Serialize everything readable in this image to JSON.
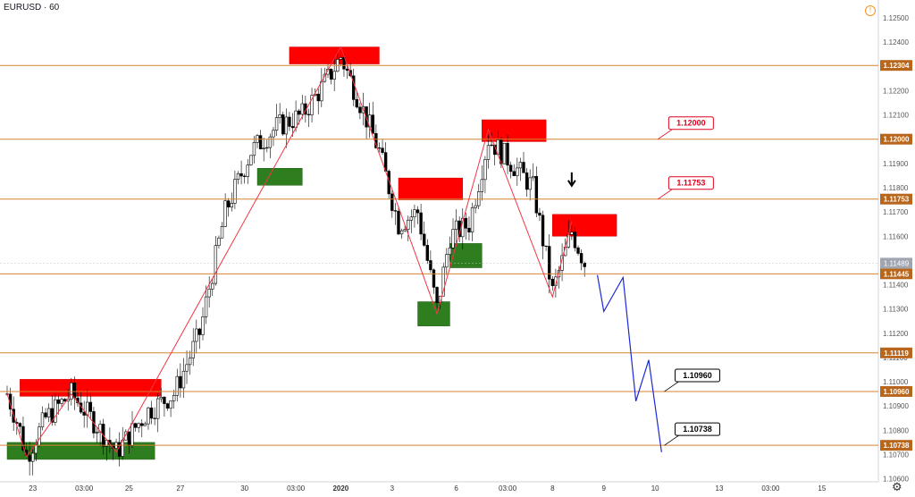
{
  "header": {
    "symbol": "EURUSD · 60",
    "info_icon": "info-icon"
  },
  "settings_icon": "gear-icon",
  "chart_data": {
    "type": "candlestick-annotated",
    "title": "EURUSD · 60",
    "ylim": [
      1.1066,
      1.1254
    ],
    "y_ticks": [
      "1.12500",
      "1.12400",
      "1.12300",
      "1.12200",
      "1.12100",
      "1.12000",
      "1.11900",
      "1.11800",
      "1.11700",
      "1.11600",
      "1.11500",
      "1.11400",
      "1.11300",
      "1.11200",
      "1.11100",
      "1.11000",
      "1.10900",
      "1.10800",
      "1.10700",
      "1.10600"
    ],
    "x_ticks": [
      {
        "label": "23",
        "i": 4
      },
      {
        "label": "03:00",
        "i": 12
      },
      {
        "label": "25",
        "i": 19
      },
      {
        "label": "27",
        "i": 27
      },
      {
        "label": "30",
        "i": 37
      },
      {
        "label": "03:00",
        "i": 45
      },
      {
        "label": "2020",
        "i": 52,
        "bold": true
      },
      {
        "label": "3",
        "i": 60
      },
      {
        "label": "6",
        "i": 70
      },
      {
        "label": "03:00",
        "i": 78
      },
      {
        "label": "8",
        "i": 85
      },
      {
        "label": "9",
        "i": 93
      },
      {
        "label": "10",
        "i": 101
      },
      {
        "label": "13",
        "i": 111
      },
      {
        "label": "03:00",
        "i": 119
      },
      {
        "label": "15",
        "i": 127
      }
    ],
    "current_price": "1.11489",
    "levels": [
      {
        "label": "1.12304",
        "value": 1.12304
      },
      {
        "label": "1.12000",
        "value": 1.12
      },
      {
        "label": "1.11753",
        "value": 1.11753
      },
      {
        "label": "1.11445",
        "value": 1.11445
      },
      {
        "label": "1.11119",
        "value": 1.11119
      },
      {
        "label": "1.10960",
        "value": 1.1096
      },
      {
        "label": "1.10738",
        "value": 1.10738
      }
    ],
    "callouts": [
      {
        "label": "1.12000",
        "color": "#e0001b",
        "i": 102,
        "value": 1.12
      },
      {
        "label": "1.11753",
        "color": "#e0001b",
        "i": 102,
        "value": 1.11753
      },
      {
        "label": "1.10960",
        "color": "#000000",
        "i": 103,
        "value": 1.1096
      },
      {
        "label": "1.10738",
        "color": "#000000",
        "i": 103,
        "value": 1.10738
      }
    ],
    "zones": [
      {
        "color": "red",
        "i0": 2,
        "i1": 24,
        "y0": 1.1101,
        "y1": 1.1094
      },
      {
        "color": "green",
        "i0": 0,
        "i1": 23,
        "y0": 1.1075,
        "y1": 1.1068
      },
      {
        "color": "green",
        "i0": 39,
        "i1": 46,
        "y0": 1.1188,
        "y1": 1.1181
      },
      {
        "color": "red",
        "i0": 44,
        "i1": 58,
        "y0": 1.1238,
        "y1": 1.1231
      },
      {
        "color": "red",
        "i0": 61,
        "i1": 71,
        "y0": 1.1184,
        "y1": 1.1175
      },
      {
        "color": "green",
        "i0": 64,
        "i1": 69,
        "y0": 1.1133,
        "y1": 1.1123
      },
      {
        "color": "green",
        "i0": 69,
        "i1": 74,
        "y0": 1.1157,
        "y1": 1.1147
      },
      {
        "color": "red",
        "i0": 74,
        "i1": 84,
        "y0": 1.1208,
        "y1": 1.1199
      },
      {
        "color": "red",
        "i0": 85,
        "i1": 95,
        "y0": 1.1169,
        "y1": 1.116
      }
    ],
    "zigzag": [
      [
        0,
        1.1095
      ],
      [
        3,
        1.1069
      ],
      [
        10,
        1.1095
      ],
      [
        17,
        1.1071
      ],
      [
        52,
        1.1238
      ],
      [
        67,
        1.1128
      ],
      [
        75,
        1.1204
      ],
      [
        85,
        1.1135
      ],
      [
        88,
        1.1166
      ]
    ],
    "projection": [
      [
        92,
        1.1144
      ],
      [
        93,
        1.1129
      ],
      [
        96,
        1.1143
      ],
      [
        98,
        1.1092
      ],
      [
        100,
        1.1109
      ],
      [
        102,
        1.1071
      ]
    ],
    "arrow": {
      "i": 88,
      "value": 1.1183
    },
    "colors": {
      "bull": "#000000",
      "bear": "#000000",
      "level": "#d48330",
      "zigzag": "#f23645",
      "projection": "#1a28d8"
    }
  }
}
